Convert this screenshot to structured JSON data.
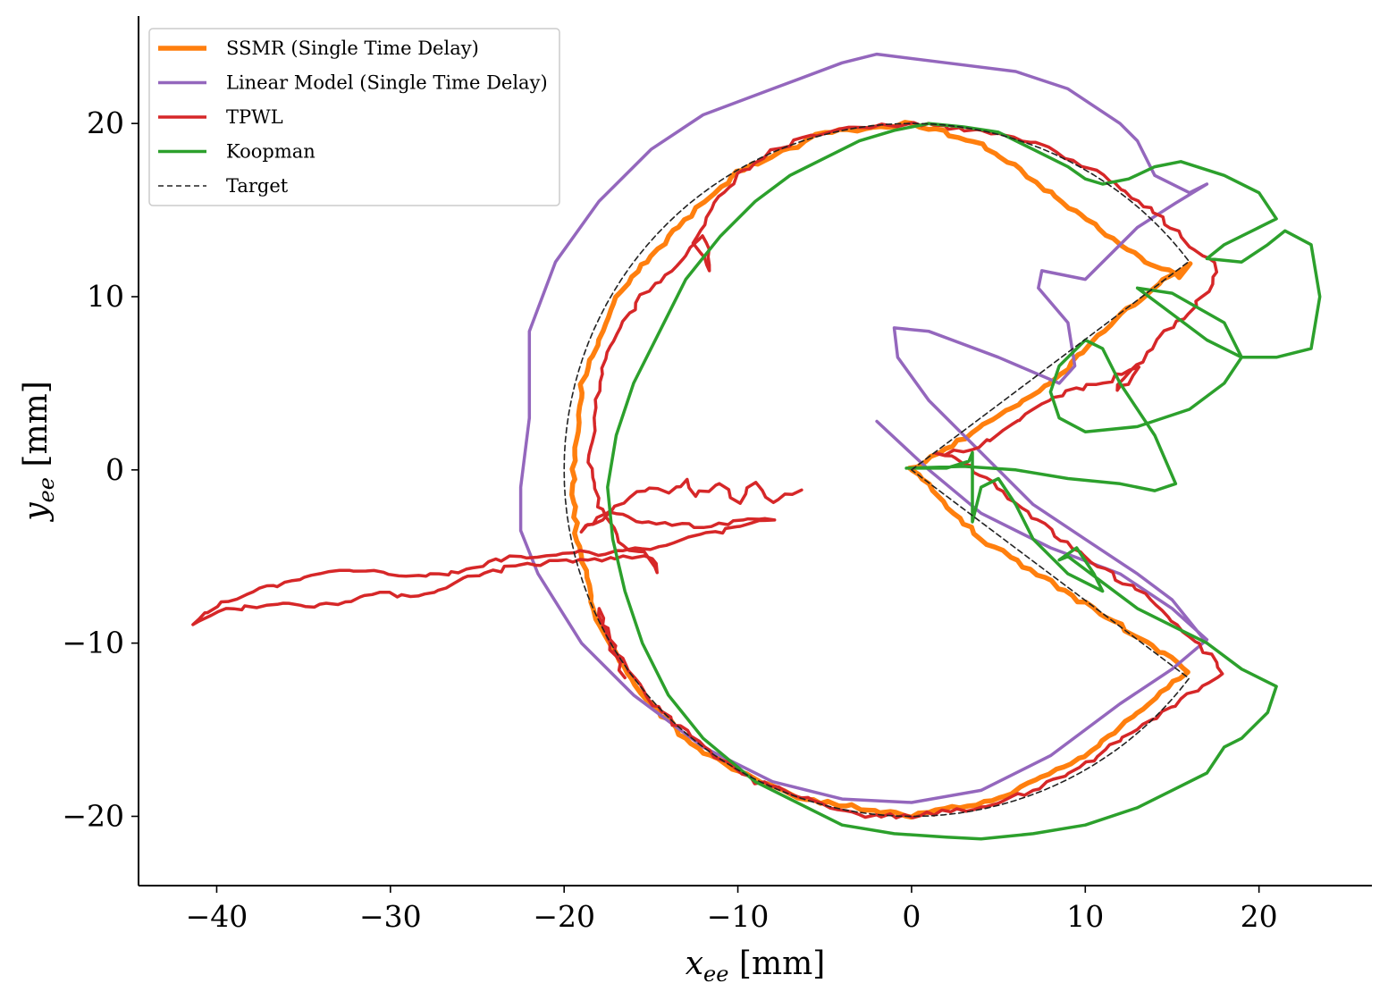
{
  "chart_data": {
    "type": "line",
    "xlabel": "x_ee [mm]",
    "ylabel": "y_ee [mm]",
    "xlabel_parts": {
      "var": "x",
      "sub": "ee",
      "unit": " [mm]"
    },
    "ylabel_parts": {
      "var": "y",
      "sub": "ee",
      "unit": " [mm]"
    },
    "xlim": [
      -44.5,
      26.5
    ],
    "ylim": [
      -24,
      26.2
    ],
    "xticks": [
      -40,
      -30,
      -20,
      -10,
      0,
      10,
      20
    ],
    "yticks": [
      -20,
      -10,
      0,
      10,
      20
    ],
    "xtick_labels": [
      "−40",
      "−30",
      "−20",
      "−10",
      "0",
      "10",
      "20"
    ],
    "ytick_labels": [
      "−20",
      "−10",
      "0",
      "10",
      "20"
    ],
    "grid": false,
    "legend_position": "top-left",
    "series": [
      {
        "name": "SSMR (Single Time Delay)",
        "color": "#ff7f0e",
        "linewidth": 5.5,
        "dash": "",
        "noise": 0.25,
        "points": [
          [
            0,
            0
          ],
          [
            8,
            5
          ],
          [
            12,
            9
          ],
          [
            16,
            12
          ],
          [
            15.5,
            11
          ],
          [
            12,
            13
          ],
          [
            8,
            16
          ],
          [
            4,
            18.8
          ],
          [
            0,
            20
          ],
          [
            -5,
            19.5
          ],
          [
            -10,
            17.2
          ],
          [
            -14,
            13.5
          ],
          [
            -17,
            10
          ],
          [
            -19,
            5
          ],
          [
            -19.5,
            0
          ],
          [
            -19.3,
            -4
          ],
          [
            -18,
            -9
          ],
          [
            -16,
            -12.5
          ],
          [
            -13,
            -15.5
          ],
          [
            -10,
            -17.5
          ],
          [
            -6,
            -19
          ],
          [
            0,
            -20
          ],
          [
            5,
            -19
          ],
          [
            10,
            -16.5
          ],
          [
            13,
            -14
          ],
          [
            15.5,
            -12
          ],
          [
            16,
            -11.6
          ],
          [
            12,
            -9
          ],
          [
            8,
            -6.5
          ],
          [
            4,
            -4
          ],
          [
            0,
            0
          ]
        ]
      },
      {
        "name": "Linear Model (Single Time Delay)",
        "color": "#9467bd",
        "linewidth": 3.5,
        "dash": "",
        "noise": 0,
        "points": [
          [
            -2,
            2.8
          ],
          [
            1,
            0
          ],
          [
            4,
            -2.5
          ],
          [
            8,
            -4.5
          ],
          [
            12,
            -6
          ],
          [
            15,
            -8
          ],
          [
            17,
            -9.8
          ],
          [
            15,
            -11.5
          ],
          [
            12,
            -13.5
          ],
          [
            8,
            -16.5
          ],
          [
            4,
            -18.5
          ],
          [
            0,
            -19.2
          ],
          [
            -4,
            -19
          ],
          [
            -8,
            -18
          ],
          [
            -12,
            -16
          ],
          [
            -16,
            -13
          ],
          [
            -19,
            -10
          ],
          [
            -21.5,
            -6
          ],
          [
            -22.5,
            -3.5
          ],
          [
            -22.5,
            -1
          ],
          [
            -22,
            3
          ],
          [
            -22,
            8
          ],
          [
            -20.5,
            12
          ],
          [
            -18,
            15.5
          ],
          [
            -15,
            18.5
          ],
          [
            -12,
            20.5
          ],
          [
            -8,
            22
          ],
          [
            -4,
            23.5
          ],
          [
            -2,
            24
          ],
          [
            2,
            23.5
          ],
          [
            6,
            23
          ],
          [
            9,
            22
          ],
          [
            12,
            20
          ],
          [
            13,
            19
          ],
          [
            14,
            17
          ],
          [
            16,
            16
          ],
          [
            17,
            16.5
          ],
          [
            15.2,
            15.4
          ],
          [
            13,
            14
          ],
          [
            10,
            11
          ],
          [
            7.5,
            11.5
          ],
          [
            7.3,
            10.5
          ],
          [
            9,
            8.5
          ],
          [
            9.4,
            6
          ],
          [
            8.5,
            5
          ],
          [
            5,
            6.5
          ],
          [
            1,
            8
          ],
          [
            -1,
            8.2
          ],
          [
            -0.8,
            6.5
          ],
          [
            1,
            4
          ],
          [
            4,
            1
          ],
          [
            7,
            -2
          ],
          [
            10,
            -4
          ],
          [
            13,
            -6
          ],
          [
            15,
            -7.5
          ],
          [
            17,
            -10
          ]
        ]
      },
      {
        "name": "TPWL",
        "color": "#d62728",
        "linewidth": 3.5,
        "dash": "",
        "noise": 0.3,
        "points": [
          [
            -6.3,
            -1.2
          ],
          [
            -8,
            -1.8
          ],
          [
            -9,
            -0.8
          ],
          [
            -10,
            -1.8
          ],
          [
            -11,
            -0.8
          ],
          [
            -12.5,
            -1.4
          ],
          [
            -13,
            -0.6
          ],
          [
            -14,
            -1.4
          ],
          [
            -15,
            -1
          ],
          [
            -17,
            -2
          ],
          [
            -19,
            -3.5
          ],
          [
            -17.5,
            -2.5
          ],
          [
            -15,
            -3
          ],
          [
            -12,
            -3.3
          ],
          [
            -8,
            -2.8
          ],
          [
            -11,
            -3.5
          ],
          [
            -14,
            -4.3
          ],
          [
            -16,
            -4.6
          ],
          [
            -18,
            -4.8
          ],
          [
            -20,
            -4.8
          ],
          [
            -22,
            -5
          ],
          [
            -24,
            -5.2
          ],
          [
            -26,
            -5.8
          ],
          [
            -28,
            -6.2
          ],
          [
            -30,
            -6
          ],
          [
            -32,
            -5.8
          ],
          [
            -34,
            -6
          ],
          [
            -36,
            -6.5
          ],
          [
            -38,
            -7
          ],
          [
            -40,
            -7.8
          ],
          [
            -41.5,
            -9
          ],
          [
            -39.5,
            -8
          ],
          [
            -37,
            -7.8
          ],
          [
            -34,
            -7.8
          ],
          [
            -31,
            -7.2
          ],
          [
            -28,
            -7.2
          ],
          [
            -25,
            -6
          ],
          [
            -22.5,
            -5.5
          ],
          [
            -20,
            -5.3
          ],
          [
            -17,
            -5.1
          ],
          [
            -15,
            -5
          ],
          [
            -14.5,
            -6
          ],
          [
            -15,
            -5
          ],
          [
            -16.5,
            -4.5
          ],
          [
            -18,
            -2
          ],
          [
            -18.5,
            0
          ],
          [
            -18.3,
            3
          ],
          [
            -18,
            5
          ],
          [
            -17,
            8
          ],
          [
            -15.5,
            10
          ],
          [
            -13,
            12.5
          ],
          [
            -12,
            13.5
          ],
          [
            -11.5,
            11.5
          ],
          [
            -12.5,
            13
          ],
          [
            -11.5,
            15
          ],
          [
            -10,
            17
          ],
          [
            -8,
            18.5
          ],
          [
            -5,
            19.5
          ],
          [
            0,
            20
          ],
          [
            5,
            19.5
          ],
          [
            8,
            18.5
          ],
          [
            11,
            17
          ],
          [
            13,
            15.5
          ],
          [
            15,
            14
          ],
          [
            16,
            13
          ],
          [
            17.5,
            12
          ],
          [
            17.5,
            11
          ],
          [
            16,
            9
          ],
          [
            14,
            7.5
          ],
          [
            13,
            6
          ],
          [
            12,
            5
          ],
          [
            11.8,
            4.5
          ],
          [
            12.5,
            5
          ],
          [
            13,
            6
          ],
          [
            11,
            5
          ],
          [
            9,
            4.5
          ],
          [
            7,
            3.5
          ],
          [
            5,
            2
          ],
          [
            3,
            1
          ],
          [
            1.5,
            1
          ],
          [
            3,
            0.5
          ],
          [
            5,
            -1
          ],
          [
            8,
            -3.5
          ],
          [
            10,
            -5
          ],
          [
            13,
            -7
          ],
          [
            16,
            -9.5
          ],
          [
            18,
            -11.7
          ],
          [
            16,
            -13
          ],
          [
            13,
            -15
          ],
          [
            10,
            -17
          ],
          [
            7,
            -18.5
          ],
          [
            4,
            -19.5
          ],
          [
            0,
            -20
          ],
          [
            -3,
            -20
          ],
          [
            -6,
            -19
          ],
          [
            -9,
            -18
          ],
          [
            -12,
            -16
          ],
          [
            -15,
            -13.5
          ],
          [
            -17,
            -10.5
          ],
          [
            -18,
            -8
          ],
          [
            -17.5,
            -10
          ],
          [
            -16.5,
            -12
          ]
        ]
      },
      {
        "name": "Koopman",
        "color": "#2ca02c",
        "linewidth": 3.5,
        "dash": "",
        "noise": 0,
        "points": [
          [
            -0.3,
            0.1
          ],
          [
            3,
            0.2
          ],
          [
            6,
            0
          ],
          [
            9,
            -0.5
          ],
          [
            12,
            -0.8
          ],
          [
            14,
            -1.2
          ],
          [
            15.2,
            -0.8
          ],
          [
            14,
            2
          ],
          [
            12,
            5
          ],
          [
            11,
            7
          ],
          [
            10,
            7.5
          ],
          [
            8.5,
            6
          ],
          [
            8,
            4.5
          ],
          [
            8.5,
            3
          ],
          [
            10,
            2.2
          ],
          [
            13,
            2.5
          ],
          [
            16,
            3.5
          ],
          [
            18,
            5
          ],
          [
            19,
            6.5
          ],
          [
            18,
            8.5
          ],
          [
            15,
            10.2
          ],
          [
            13,
            10.5
          ],
          [
            15,
            9
          ],
          [
            17,
            7.5
          ],
          [
            19,
            6.5
          ],
          [
            21,
            6.5
          ],
          [
            23,
            7
          ],
          [
            23.5,
            10
          ],
          [
            23,
            13
          ],
          [
            21.5,
            13.8
          ],
          [
            20.5,
            13
          ],
          [
            19,
            12
          ],
          [
            17,
            12.2
          ],
          [
            18,
            13
          ],
          [
            20,
            14
          ],
          [
            21,
            14.5
          ],
          [
            20,
            16
          ],
          [
            18,
            17
          ],
          [
            15.5,
            17.8
          ],
          [
            14,
            17.5
          ],
          [
            12.5,
            16.8
          ],
          [
            11,
            16.5
          ],
          [
            10,
            16.8
          ],
          [
            9,
            17.5
          ],
          [
            7,
            18.5
          ],
          [
            5,
            19.5
          ],
          [
            3,
            19.8
          ],
          [
            1,
            20
          ],
          [
            -1,
            19.6
          ],
          [
            -3,
            19
          ],
          [
            -5,
            18
          ],
          [
            -7,
            17
          ],
          [
            -9,
            15.5
          ],
          [
            -11,
            13.5
          ],
          [
            -13,
            11
          ],
          [
            -14.5,
            8
          ],
          [
            -16,
            5
          ],
          [
            -17,
            2
          ],
          [
            -17.5,
            -1
          ],
          [
            -17.2,
            -4
          ],
          [
            -16.5,
            -7
          ],
          [
            -15.5,
            -10
          ],
          [
            -14,
            -13
          ],
          [
            -12,
            -15.5
          ],
          [
            -9,
            -18
          ],
          [
            -6,
            -19.5
          ],
          [
            -4,
            -20.5
          ],
          [
            -1,
            -21
          ],
          [
            2,
            -21.2
          ],
          [
            4,
            -21.3
          ],
          [
            7,
            -21
          ],
          [
            10,
            -20.5
          ],
          [
            13,
            -19.5
          ],
          [
            15,
            -18.5
          ],
          [
            17,
            -17.5
          ],
          [
            18,
            -16
          ],
          [
            19,
            -15.5
          ],
          [
            20.5,
            -14
          ],
          [
            21,
            -12.5
          ],
          [
            19,
            -11.5
          ],
          [
            17,
            -10
          ],
          [
            15,
            -9
          ],
          [
            13,
            -8
          ],
          [
            11,
            -6.5
          ],
          [
            9,
            -5
          ],
          [
            8.5,
            -5.2
          ],
          [
            9.5,
            -4.5
          ],
          [
            10.5,
            -6
          ],
          [
            11,
            -7
          ],
          [
            9,
            -6
          ],
          [
            7,
            -4
          ],
          [
            6,
            -2
          ],
          [
            5,
            -0.5
          ],
          [
            4,
            -1
          ],
          [
            3.5,
            -3
          ],
          [
            3.5,
            -1
          ],
          [
            3.5,
            1
          ],
          [
            3.3,
            0.5
          ],
          [
            2,
            0.1
          ],
          [
            0,
            0.1
          ]
        ]
      },
      {
        "name": "Target",
        "color": "#222222",
        "linewidth": 1.6,
        "dash": "6,4",
        "noise": 0,
        "arc": {
          "r": 20,
          "start_deg": 37,
          "end_deg": 323
        },
        "points": [
          [
            0,
            0
          ],
          [
            16,
            12
          ],
          [
            16,
            -12
          ],
          [
            0,
            0
          ]
        ]
      }
    ]
  }
}
